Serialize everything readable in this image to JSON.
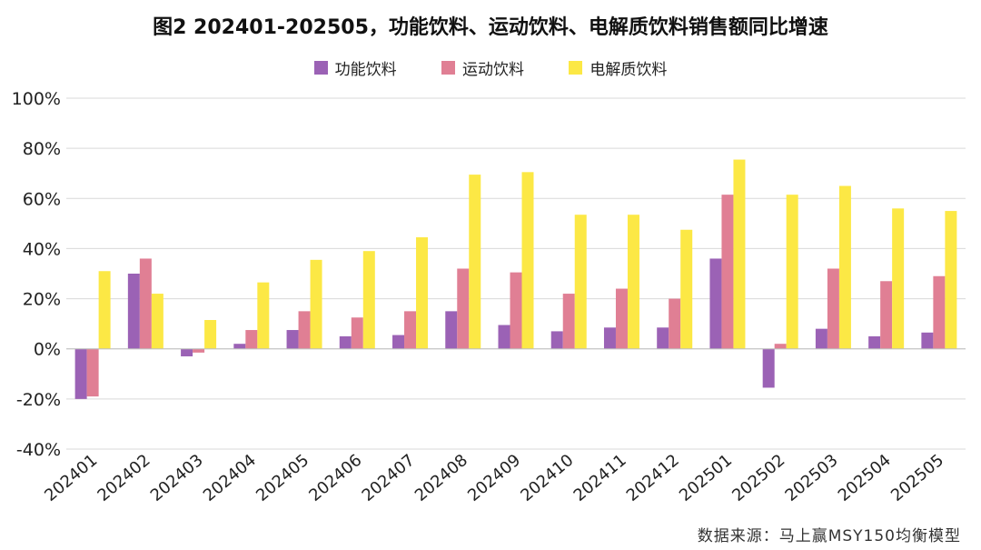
{
  "chart_data": {
    "type": "bar",
    "title": "图2 202401-202505，功能饮料、运动饮料、电解质饮料销售额同比增速",
    "xlabel": "",
    "ylabel": "",
    "ylim": [
      -40,
      100
    ],
    "yticks": [
      -40,
      -20,
      0,
      20,
      40,
      60,
      80,
      100
    ],
    "tick_suffix": "%",
    "grid": true,
    "legend_position": "top",
    "categories": [
      "202401",
      "202402",
      "202403",
      "202404",
      "202405",
      "202406",
      "202407",
      "202408",
      "202409",
      "202410",
      "202411",
      "202412",
      "202501",
      "202502",
      "202503",
      "202504",
      "202505"
    ],
    "series": [
      {
        "name": "功能饮料",
        "color": "#9b62b5",
        "values": [
          -20,
          30,
          -3,
          2,
          7.5,
          5,
          5.5,
          15,
          9.5,
          7,
          8.5,
          8.5,
          36,
          -15.5,
          8,
          5,
          6.5
        ]
      },
      {
        "name": "运动饮料",
        "color": "#e07f94",
        "values": [
          -19,
          36,
          -1.5,
          7.5,
          15,
          12.5,
          15,
          32,
          30.5,
          22,
          24,
          20,
          61.5,
          2,
          32,
          27,
          29
        ]
      },
      {
        "name": "电解质饮料",
        "color": "#fce845",
        "values": [
          31,
          22,
          11.5,
          26.5,
          35.5,
          39,
          44.5,
          69.5,
          70.5,
          53.5,
          53.5,
          47.5,
          75.5,
          61.5,
          65,
          56,
          55
        ]
      }
    ]
  },
  "source_text": "数据来源：马上赢MSY150均衡模型"
}
